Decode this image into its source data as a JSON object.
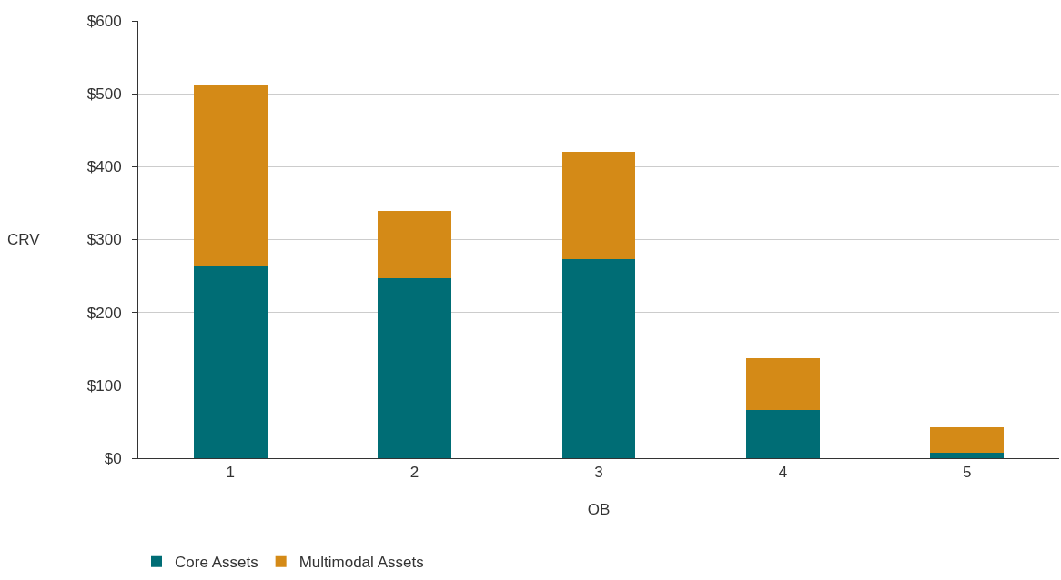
{
  "chart_data": {
    "type": "bar",
    "stacked": true,
    "xlabel": "OB",
    "ylabel": "CRV",
    "categories": [
      "1",
      "2",
      "3",
      "4",
      "5"
    ],
    "series": [
      {
        "name": "Core Assets",
        "color": "#006d75",
        "values": [
          263,
          247,
          273,
          66,
          7
        ]
      },
      {
        "name": "Multimodal Assets",
        "color": "#d48a17",
        "values": [
          248,
          92,
          147,
          71,
          35
        ]
      }
    ],
    "ylim": [
      0,
      600
    ],
    "yticks": [
      {
        "value": 0,
        "label": "$0"
      },
      {
        "value": 100,
        "label": "$100"
      },
      {
        "value": 200,
        "label": "$200"
      },
      {
        "value": 300,
        "label": "$300"
      },
      {
        "value": 400,
        "label": "$400"
      },
      {
        "value": 500,
        "label": "$500"
      },
      {
        "value": 600,
        "label": "$600"
      }
    ],
    "grid": "y",
    "legend": "bottom left"
  }
}
